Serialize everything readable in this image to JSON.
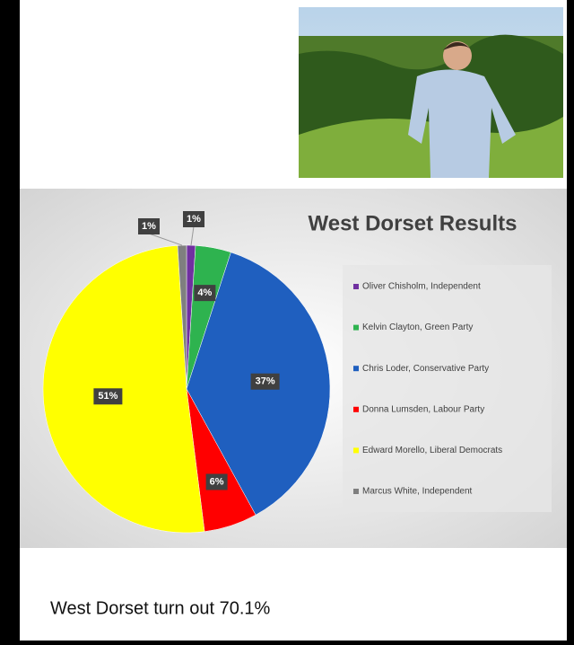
{
  "chart_data": {
    "type": "pie",
    "title": "West Dorset Results",
    "categories": [
      "Oliver Chisholm, Independent",
      "Kelvin Clayton, Green Party",
      "Chris Loder,  Conservative Party",
      "Donna Lumsden, Labour Party",
      "Edward Morello, Liberal Democrats",
      "Marcus White, Independent"
    ],
    "values": [
      1,
      4,
      37,
      6,
      51,
      1
    ],
    "value_labels": [
      "1%",
      "4%",
      "37%",
      "6%",
      "51%",
      "1%"
    ],
    "colors": [
      "#7030a0",
      "#2eb34f",
      "#1f5fbf",
      "#ff0000",
      "#ffff00",
      "#7f7f7f"
    ],
    "legend": "right"
  },
  "caption": "West Dorset turn out 70.1%"
}
